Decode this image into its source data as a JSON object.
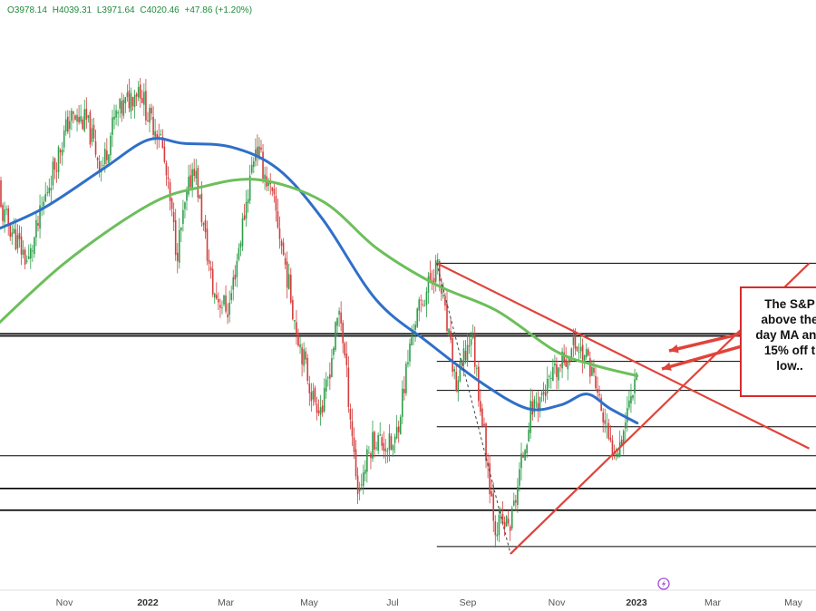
{
  "header": {
    "open": "O3978.14",
    "high": "H4039.31",
    "low": "L3971.64",
    "close": "C4020.46",
    "change": "+47.86 (+1.20%)"
  },
  "annotation": {
    "lines": [
      "The S&P",
      "above the",
      "day MA and",
      "15% off t",
      "low.."
    ]
  },
  "colors": {
    "up": "#2e9e4a",
    "down": "#d43d3d",
    "ma_fast": "#2f6fc8",
    "ma_slow": "#6cbf5b",
    "trendline": "#e0433a"
  },
  "icon": "lightning-icon",
  "chart_data": {
    "type": "line",
    "title": "",
    "xlabel": "",
    "ylabel": "",
    "x_ticks": [
      "Nov",
      "2022",
      "Mar",
      "May",
      "Jul",
      "Sep",
      "Nov",
      "2023",
      "Mar",
      "May"
    ],
    "x_ticks_bold": [
      "2022",
      "2023"
    ],
    "ylim": [
      3400,
      4900
    ],
    "grid": false,
    "price_path": [
      [
        "2021-09-01",
        4520
      ],
      [
        "2021-09-20",
        4400
      ],
      [
        "2021-10-04",
        4300
      ],
      [
        "2021-10-20",
        4520
      ],
      [
        "2021-11-05",
        4700
      ],
      [
        "2021-11-18",
        4690
      ],
      [
        "2021-11-30",
        4560
      ],
      [
        "2021-12-10",
        4700
      ],
      [
        "2021-12-29",
        4790
      ],
      [
        "2022-01-05",
        4700
      ],
      [
        "2022-01-14",
        4660
      ],
      [
        "2022-01-27",
        4330
      ],
      [
        "2022-02-09",
        4580
      ],
      [
        "2022-02-24",
        4220
      ],
      [
        "2022-03-08",
        4170
      ],
      [
        "2022-03-29",
        4630
      ],
      [
        "2022-04-13",
        4450
      ],
      [
        "2022-04-29",
        4130
      ],
      [
        "2022-05-12",
        3930
      ],
      [
        "2022-05-20",
        3900
      ],
      [
        "2022-06-02",
        4180
      ],
      [
        "2022-06-16",
        3670
      ],
      [
        "2022-06-28",
        3820
      ],
      [
        "2022-07-14",
        3790
      ],
      [
        "2022-07-29",
        4130
      ],
      [
        "2022-08-16",
        4300
      ],
      [
        "2022-08-31",
        3960
      ],
      [
        "2022-09-12",
        4110
      ],
      [
        "2022-09-30",
        3580
      ],
      [
        "2022-10-12",
        3580
      ],
      [
        "2022-10-28",
        3900
      ],
      [
        "2022-11-10",
        3960
      ],
      [
        "2022-12-01",
        4080
      ],
      [
        "2022-12-13",
        4020
      ],
      [
        "2022-12-28",
        3790
      ],
      [
        "2023-01-05",
        3810
      ],
      [
        "2023-01-18",
        4020
      ]
    ],
    "series": [
      {
        "x": [
          "2021-09-01",
          "2021-10-15",
          "2021-12-01",
          "2022-01-05",
          "2022-02-01",
          "2022-03-10",
          "2022-04-15",
          "2022-05-20",
          "2022-06-30",
          "2022-08-10",
          "2022-09-20",
          "2022-10-25",
          "2022-11-20",
          "2022-12-10",
          "2022-12-28",
          "2023-01-18"
        ],
        "values": [
          4380,
          4450,
          4560,
          4640,
          4630,
          4620,
          4560,
          4420,
          4200,
          4080,
          3970,
          3900,
          3910,
          3940,
          3900,
          3860
        ]
      },
      {
        "x": [
          "2021-09-01",
          "2021-11-01",
          "2022-01-05",
          "2022-02-15",
          "2022-03-31",
          "2022-05-20",
          "2022-07-01",
          "2022-08-16",
          "2022-10-01",
          "2022-11-15",
          "2022-12-15",
          "2023-01-18"
        ],
        "values": [
          4100,
          4300,
          4460,
          4510,
          4530,
          4470,
          4340,
          4240,
          4170,
          4060,
          4020,
          3990
        ]
      }
    ],
    "horizontal_levels": [
      4300,
      4106,
      4100,
      4030,
      3950,
      3850,
      3770,
      3680,
      3620,
      3520
    ],
    "trendlines": [
      {
        "from": [
          "2022-08-16",
          4300
        ],
        "to": [
          "2023-05-31",
          3790
        ]
      },
      {
        "from": [
          "2022-10-12",
          3500
        ],
        "to": [
          "2023-05-31",
          4300
        ]
      }
    ]
  }
}
